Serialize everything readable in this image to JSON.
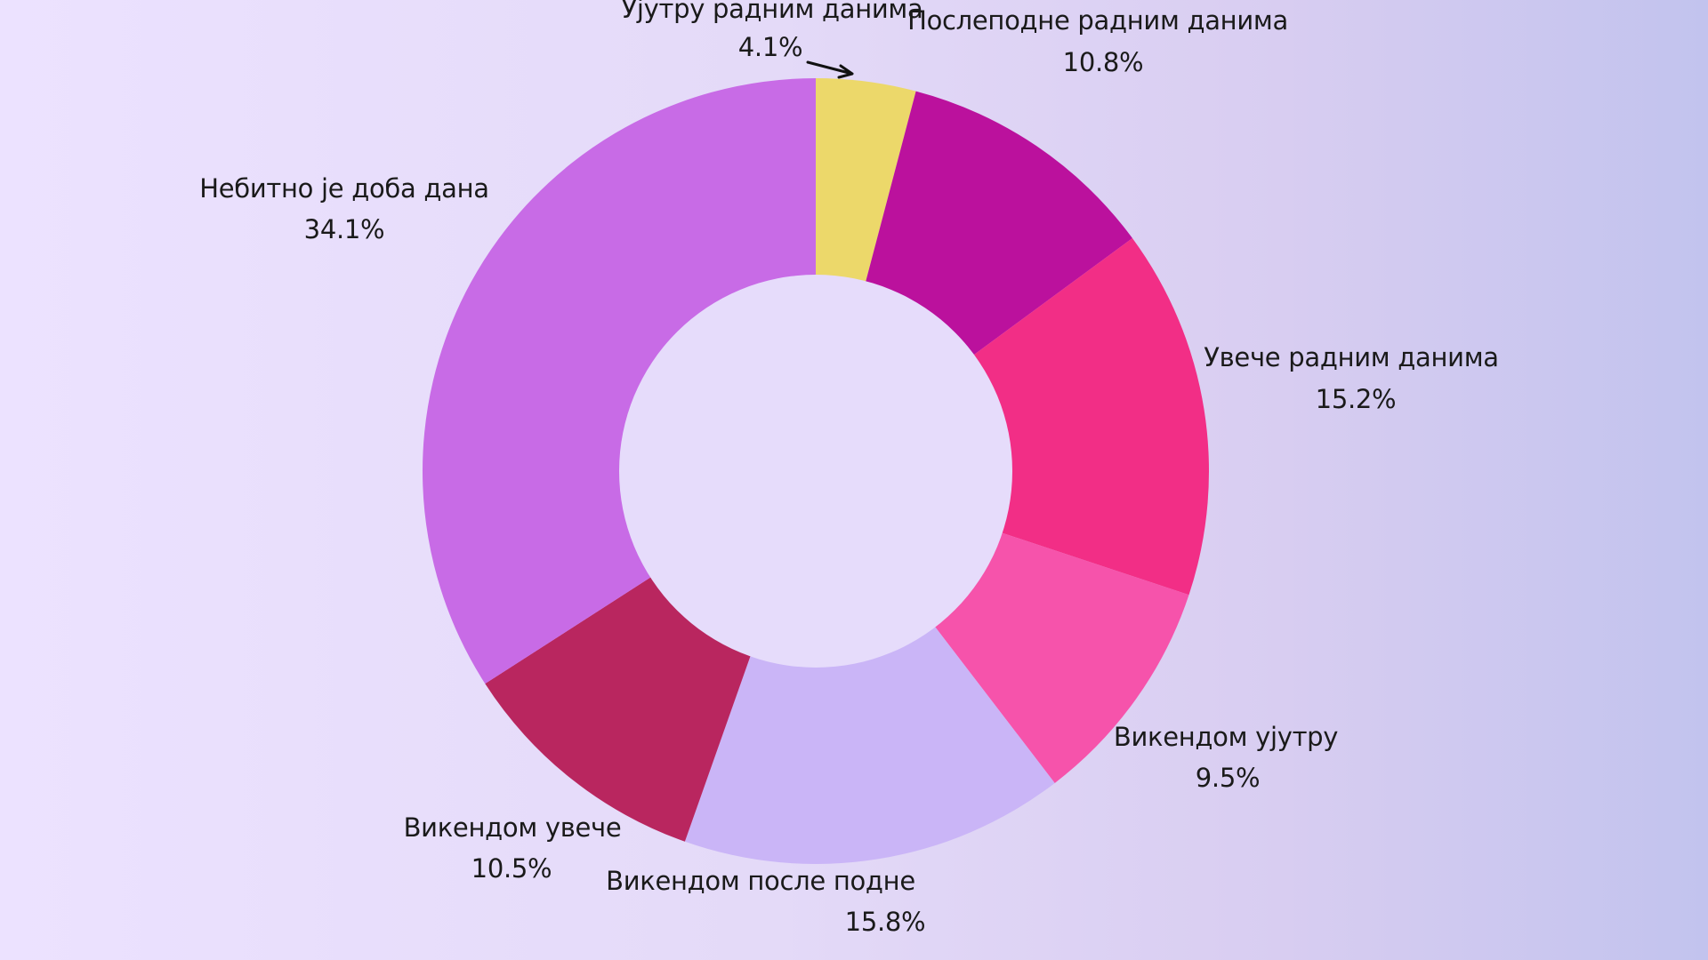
{
  "chart_data": {
    "type": "pie",
    "variant": "donut",
    "title": "",
    "legend": "none",
    "slices": [
      {
        "name": "Ујутру радним данима",
        "value": 4.1,
        "label": "4.1%",
        "color": "#ecd86a"
      },
      {
        "name": "Послеподне радним данима",
        "value": 10.8,
        "label": "10.8%",
        "color": "#bb119d"
      },
      {
        "name": "Увече радним данима",
        "value": 15.2,
        "label": "15.2%",
        "color": "#f22e86"
      },
      {
        "name": "Викендом ујутру",
        "value": 9.5,
        "label": "9.5%",
        "color": "#f653ab"
      },
      {
        "name": "Викендом после подне",
        "value": 15.8,
        "label": "15.8%",
        "color": "#cab5f7"
      },
      {
        "name": "Викендом увече",
        "value": 10.5,
        "label": "10.5%",
        "color": "#b9265f"
      },
      {
        "name": "Небитно је доба дана",
        "value": 34.1,
        "label": "34.1%",
        "color": "#c86be6"
      }
    ],
    "center_color": "#e6dcfb",
    "label_color": "#1a1a1a"
  }
}
